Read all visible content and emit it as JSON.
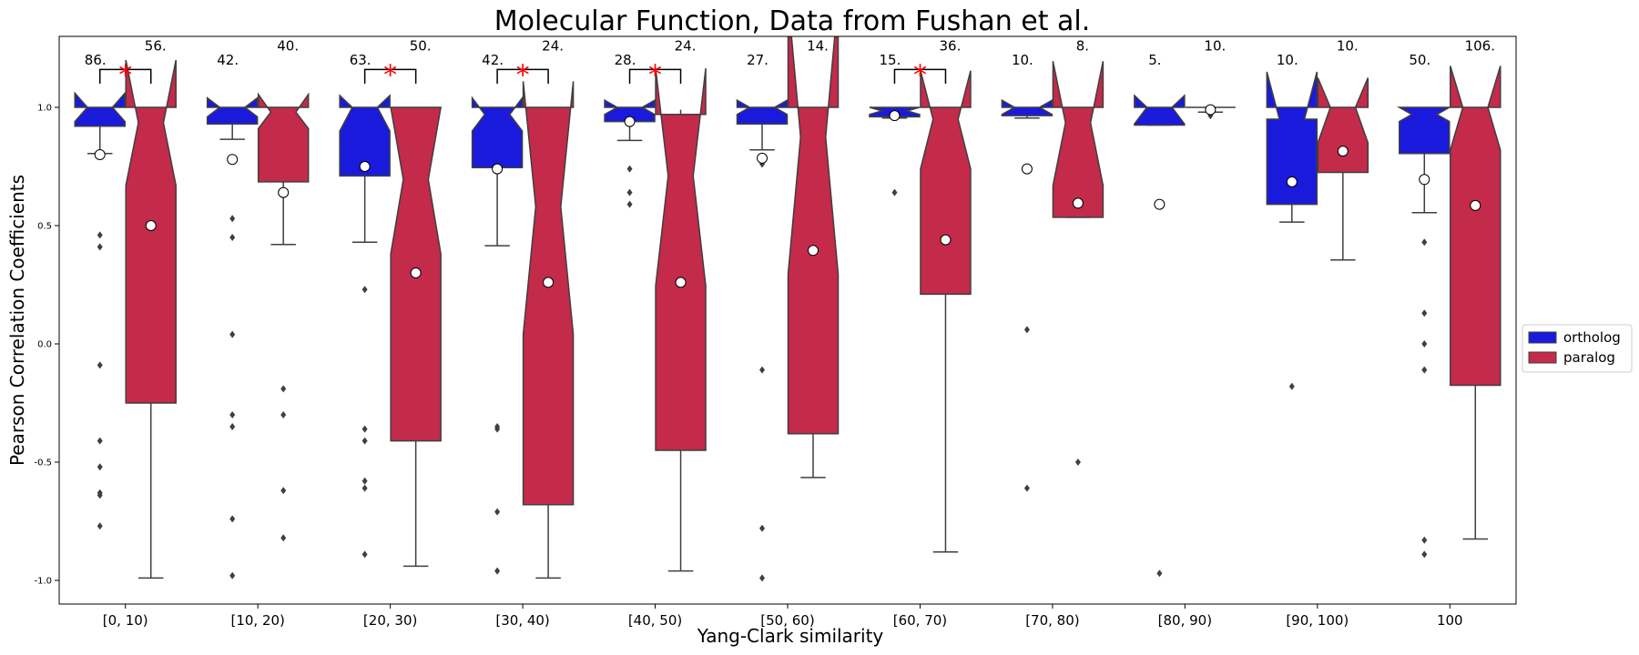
{
  "chart_data": {
    "type": "box",
    "title": "Molecular Function, Data from Fushan et al.",
    "xlabel": "Yang-Clark similarity",
    "ylabel": "Pearson Correlation Coefficients",
    "ylim": [
      -1.1,
      1.3
    ],
    "yticks": [
      "-1.0",
      "-0.5",
      "0.0",
      "0.5",
      "1.0"
    ],
    "ytick_values": [
      -1.0,
      -0.5,
      0.0,
      0.5,
      1.0
    ],
    "categories": [
      "[0, 10)",
      "[10, 20)",
      "[20, 30)",
      "[30, 40)",
      "[40, 50)",
      "[50, 60)",
      "[60, 70)",
      "[70, 80)",
      "[80, 90)",
      "[90, 100)",
      "100"
    ],
    "legend": {
      "position": "right",
      "entries": [
        "ortholog",
        "paralog"
      ]
    },
    "colors": {
      "ortholog": "#1a1adc",
      "paralog": "#c42a4a",
      "star": "#ff0000"
    },
    "series": [
      {
        "name": "ortholog",
        "counts": [
          "86.",
          "42.",
          "63.",
          "42.",
          "28.",
          "27.",
          "15.",
          "10.",
          "5.",
          "10.",
          "50."
        ],
        "q1": [
          0.92,
          0.93,
          0.71,
          0.745,
          0.94,
          0.93,
          0.96,
          0.965,
          0.925,
          0.59,
          0.805
        ],
        "median": [
          1.0,
          1.0,
          1.0,
          0.97,
          1.0,
          1.0,
          0.985,
          1.0,
          1.0,
          0.95,
          0.97
        ],
        "q3": [
          1.0,
          1.0,
          1.0,
          1.0,
          1.0,
          1.0,
          1.0,
          1.0,
          1.0,
          1.0,
          1.0
        ],
        "whisker_low": [
          0.805,
          0.865,
          0.43,
          0.415,
          0.86,
          0.82,
          0.955,
          0.955,
          0.925,
          0.515,
          0.555
        ],
        "whisker_high": [
          1.0,
          1.0,
          1.0,
          1.0,
          1.0,
          1.0,
          1.0,
          1.0,
          1.0,
          1.0,
          1.0
        ],
        "notch_low": [
          0.94,
          0.96,
          0.9,
          0.9,
          0.97,
          0.97,
          0.97,
          0.97,
          0.93,
          0.95,
          0.94
        ],
        "notch_high": [
          1.06,
          1.04,
          1.05,
          1.04,
          1.03,
          1.03,
          1.0,
          1.03,
          1.05,
          1.15,
          1.0
        ],
        "mean": [
          0.8,
          0.78,
          0.75,
          0.74,
          0.94,
          0.785,
          0.965,
          0.74,
          0.59,
          0.685,
          0.695
        ],
        "outliers": [
          [
            0.46,
            0.41,
            -0.09,
            -0.41,
            -0.52,
            -0.63,
            -0.64,
            -0.77
          ],
          [
            0.53,
            0.45,
            0.04,
            -0.3,
            -0.35,
            -0.74,
            -0.98
          ],
          [
            0.23,
            -0.36,
            -0.41,
            -0.58,
            -0.61,
            -0.89
          ],
          [
            -0.35,
            -0.36,
            -0.71,
            -0.96
          ],
          [
            0.74,
            0.64,
            0.59
          ],
          [
            0.76,
            -0.11,
            -0.78,
            -0.99
          ],
          [
            0.64
          ],
          [
            0.06,
            -0.61
          ],
          [
            -0.97
          ],
          [
            -0.18
          ],
          [
            0.43,
            0.13,
            0.0,
            -0.11,
            -0.83,
            -0.89
          ]
        ]
      },
      {
        "name": "paralog",
        "counts": [
          "56.",
          "40.",
          "50.",
          "24.",
          "24.",
          "14.",
          "36.",
          "8.",
          "10.",
          "10.",
          "106."
        ],
        "q1": [
          -0.25,
          0.685,
          -0.41,
          -0.68,
          -0.45,
          -0.38,
          0.21,
          0.535,
          1.0,
          0.725,
          -0.175
        ],
        "median": [
          0.935,
          0.98,
          0.695,
          0.58,
          0.71,
          0.875,
          0.95,
          0.935,
          1.0,
          1.0,
          1.0
        ],
        "q3": [
          1.0,
          1.0,
          1.0,
          1.0,
          0.97,
          1.0,
          1.0,
          1.0,
          1.0,
          1.0,
          1.0
        ],
        "whisker_low": [
          -0.99,
          0.42,
          -0.94,
          -0.99,
          -0.96,
          -0.565,
          -0.88,
          0.535,
          0.98,
          0.355,
          -0.825
        ],
        "whisker_high": [
          1.0,
          1.0,
          1.0,
          1.0,
          0.99,
          1.0,
          1.0,
          1.0,
          1.0,
          1.0,
          1.0
        ],
        "notch_low": [
          0.67,
          0.91,
          0.38,
          0.04,
          0.245,
          0.295,
          0.74,
          0.67,
          1.0,
          0.85,
          0.82
        ],
        "notch_high": [
          1.2,
          1.055,
          1.0,
          1.11,
          1.165,
          1.46,
          1.155,
          1.195,
          1.0,
          1.125,
          1.175
        ],
        "mean": [
          0.5,
          0.64,
          0.3,
          0.26,
          0.26,
          0.395,
          0.44,
          0.595,
          0.99,
          0.815,
          0.585
        ],
        "outliers": [
          [],
          [
            -0.19,
            -0.3,
            -0.62,
            -0.82
          ],
          [],
          [],
          [],
          [],
          [],
          [
            -0.5
          ],
          [
            0.965
          ],
          [],
          []
        ]
      }
    ],
    "significance": [
      true,
      false,
      true,
      true,
      true,
      false,
      true,
      false,
      false,
      false,
      false
    ],
    "significance_marker": "*"
  }
}
